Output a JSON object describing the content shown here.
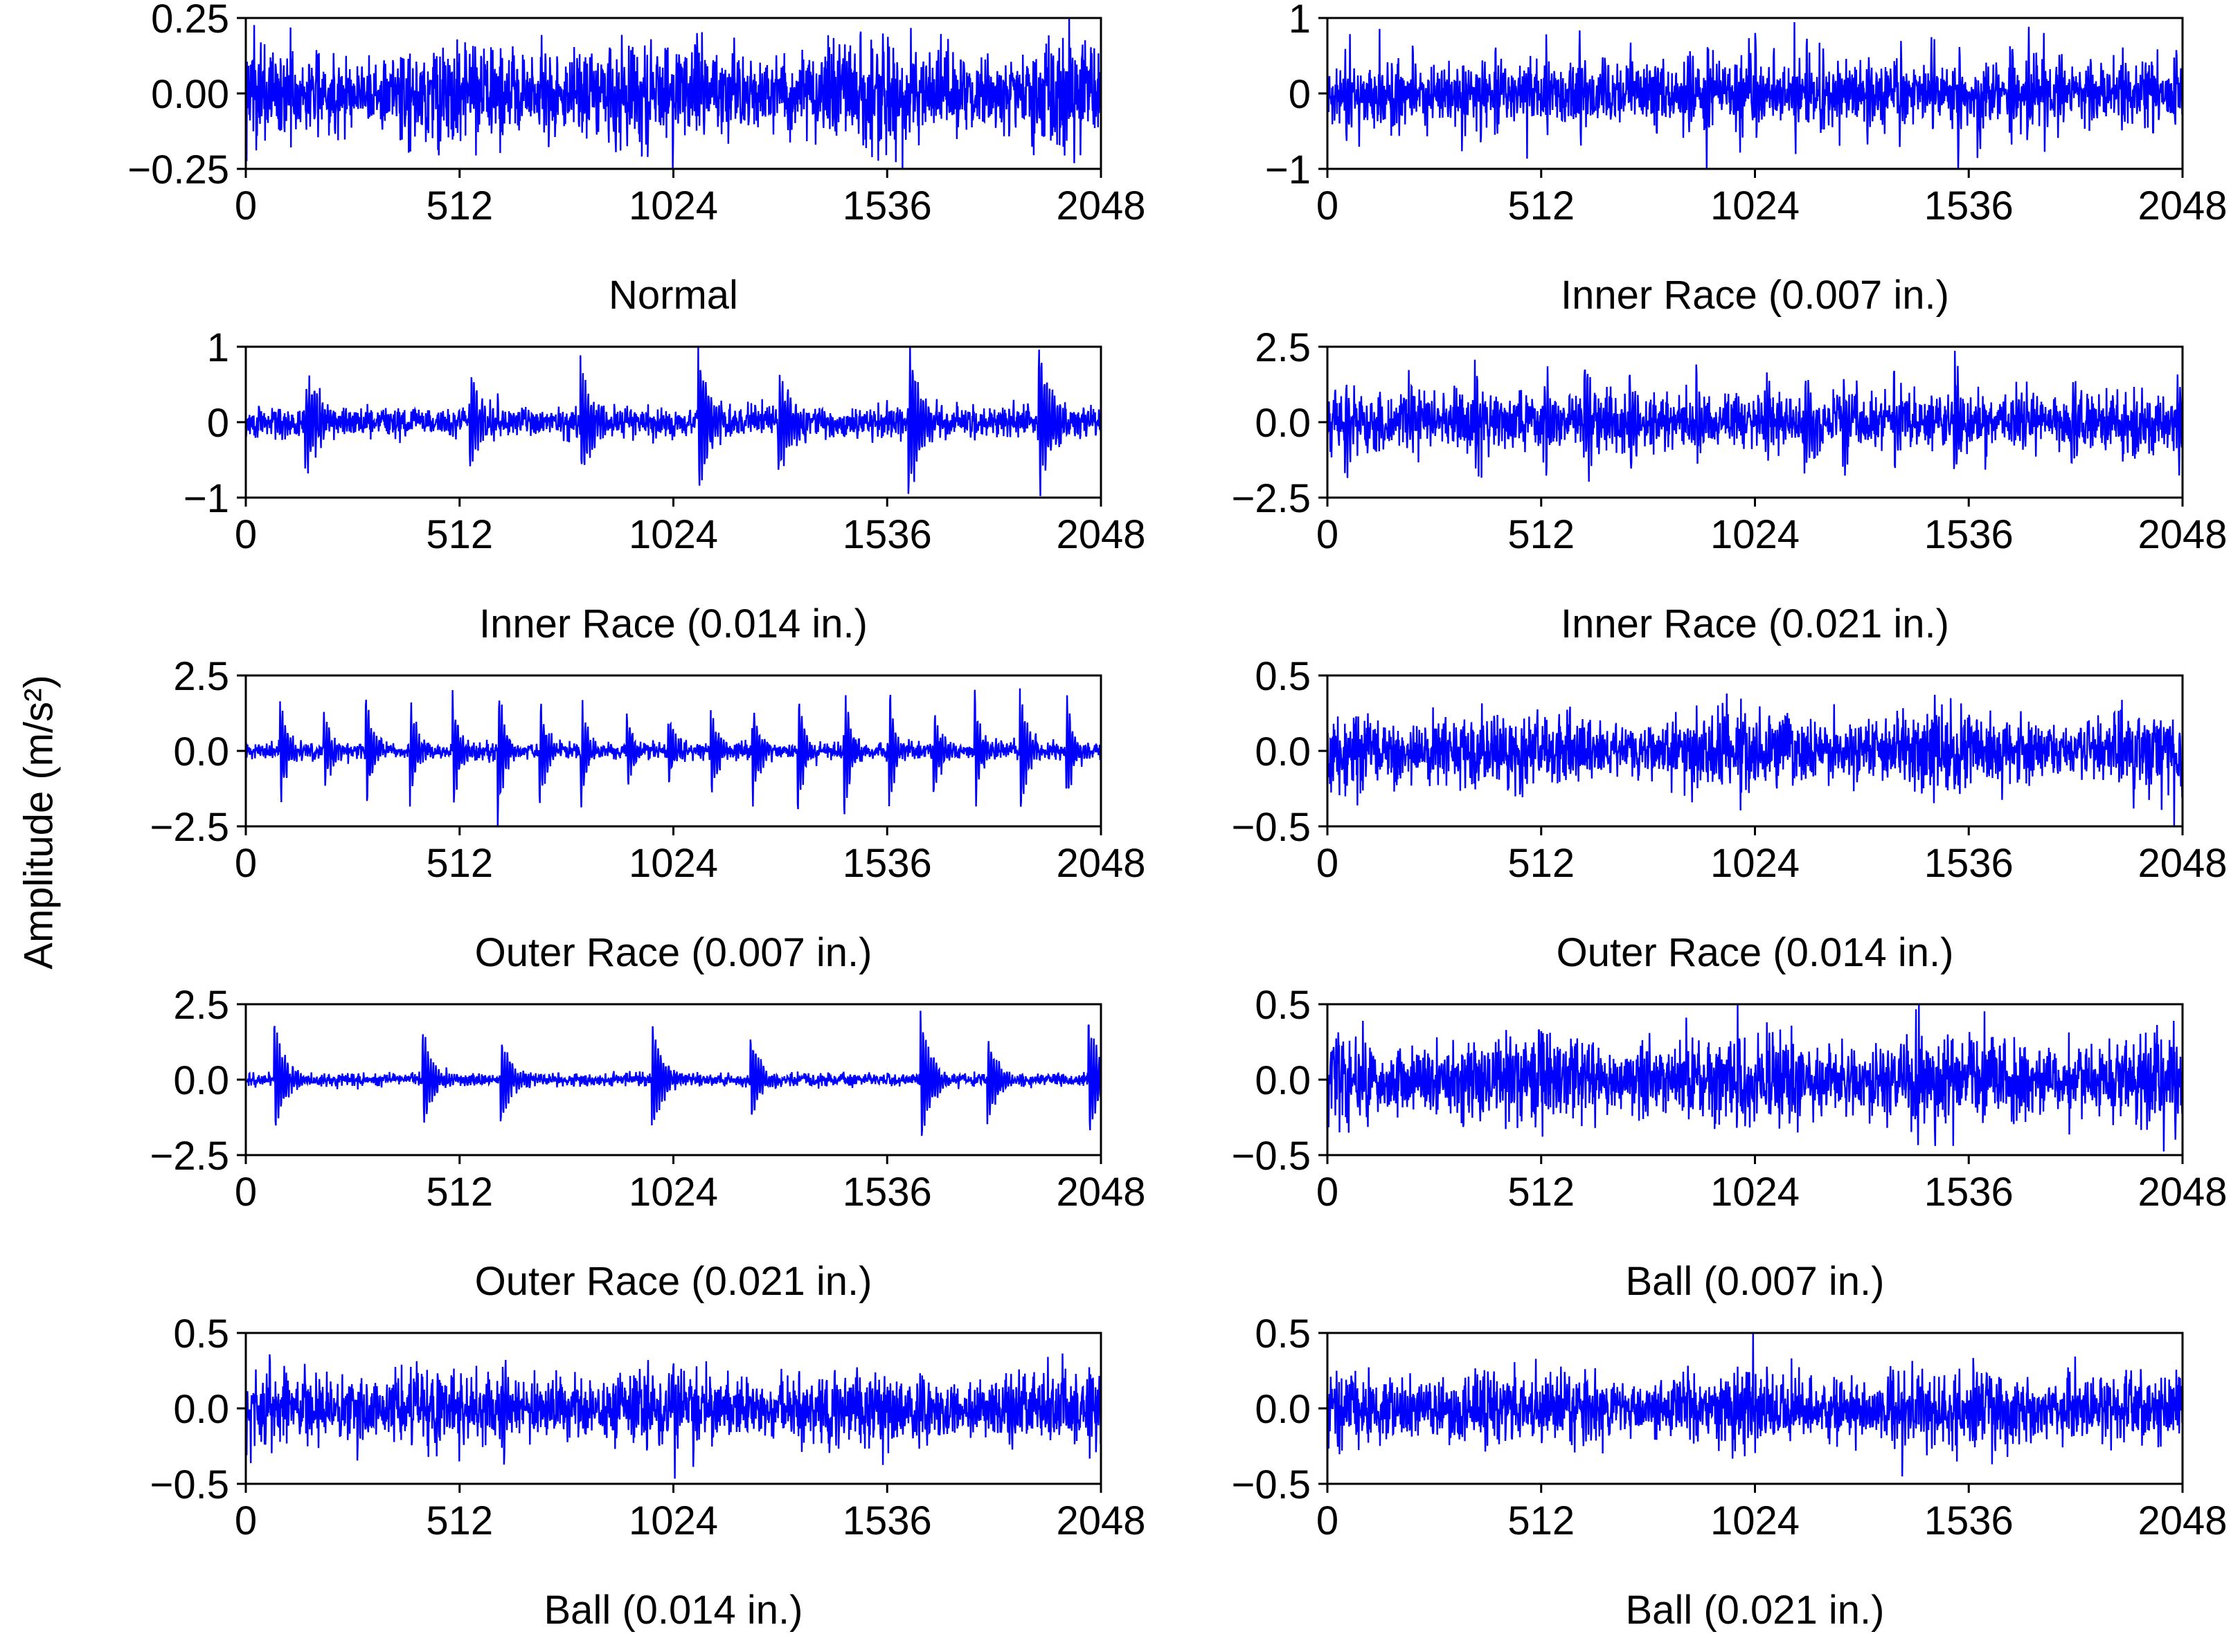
{
  "figure": {
    "background": "#ffffff"
  },
  "chart_data": {
    "type": "line",
    "description": "Vibration acceleration time-series (2048 samples each) for ten bearing health conditions arranged in a 5x2 grid of subplots",
    "ylabel": "Amplitude (m/s²)",
    "line_color": "#0000ff",
    "grid": "off",
    "legend": "none",
    "x": {
      "lim": [
        0,
        2048
      ],
      "ticks": [
        0,
        512,
        1024,
        1536,
        2048
      ]
    },
    "subplots": [
      {
        "title": "Normal",
        "ylim": [
          -0.25,
          0.25
        ],
        "ytick_labels": [
          "0.25",
          "0.00",
          "−0.25"
        ],
        "ytick_values": [
          0.25,
          0,
          -0.25
        ],
        "signal": {
          "noise_amp": 0.075,
          "mod": 0.2
        }
      },
      {
        "title": "Inner Race (0.007 in.)",
        "ylim": [
          -1,
          1
        ],
        "ytick_labels": [
          "1",
          "0",
          "−1"
        ],
        "ytick_values": [
          1,
          0,
          -1
        ],
        "signal": {
          "noise_amp": 0.2,
          "burst_period": 55,
          "burst_amp": 0.7,
          "burst_decay": 10,
          "burst_jitter": 0.5
        }
      },
      {
        "title": "Inner Race (0.014 in.)",
        "ylim": [
          -1,
          1
        ],
        "ytick_labels": [
          "1",
          "0",
          "−1"
        ],
        "ytick_values": [
          1,
          0,
          -1
        ],
        "signal": {
          "noise_amp": 0.1,
          "burst_period": 300,
          "burst_amp": 0.9,
          "burst_decay": 30,
          "burst_jitter": 0.4
        }
      },
      {
        "title": "Inner Race (0.021 in.)",
        "ylim": [
          -2.5,
          2.5
        ],
        "ytick_labels": [
          "2.5",
          "0.0",
          "−2.5"
        ],
        "ytick_values": [
          2.5,
          0,
          -2.5
        ],
        "signal": {
          "noise_amp": 0.45,
          "burst_period": 120,
          "burst_amp": 1.7,
          "burst_decay": 18,
          "burst_jitter": 0.45
        }
      },
      {
        "title": "Outer Race (0.007 in.)",
        "ylim": [
          -2.5,
          2.5
        ],
        "ytick_labels": [
          "2.5",
          "0.0",
          "−2.5"
        ],
        "ytick_values": [
          2.5,
          0,
          -2.5
        ],
        "signal": {
          "noise_amp": 0.14,
          "burst_period": 105,
          "burst_amp": 2.1,
          "burst_decay": 16,
          "burst_jitter": 0.06
        }
      },
      {
        "title": "Outer Race (0.014 in.)",
        "ylim": [
          -0.5,
          0.5
        ],
        "ytick_labels": [
          "0.5",
          "0.0",
          "−0.5"
        ],
        "ytick_values": [
          0.5,
          0,
          -0.5
        ],
        "signal": {
          "noise_amp": 0.11,
          "mod": 0.25,
          "burst_period": 400,
          "burst_amp": 0.1,
          "burst_decay": 40,
          "burst_jitter": 0.4
        }
      },
      {
        "title": "Outer Race (0.021 in.)",
        "ylim": [
          -2.5,
          2.5
        ],
        "ytick_labels": [
          "2.5",
          "0.0",
          "−2.5"
        ],
        "ytick_values": [
          2.5,
          0,
          -2.5
        ],
        "signal": {
          "noise_amp": 0.1,
          "burst_period": 290,
          "burst_amp": 2.1,
          "burst_decay": 25,
          "burst_jitter": 0.45
        }
      },
      {
        "title": "Ball (0.007 in.)",
        "ylim": [
          -0.5,
          0.5
        ],
        "ytick_labels": [
          "0.5",
          "0.0",
          "−0.5"
        ],
        "ytick_values": [
          0.5,
          0,
          -0.5
        ],
        "signal": {
          "noise_amp": 0.13,
          "mod": 0.2,
          "burst_period": 250,
          "burst_amp": 0.15,
          "burst_decay": 40,
          "burst_jitter": 0.5
        }
      },
      {
        "title": "Ball (0.014 in.)",
        "ylim": [
          -0.5,
          0.5
        ],
        "ytick_labels": [
          "0.5",
          "0.0",
          "−0.5"
        ],
        "ytick_values": [
          0.5,
          0,
          -0.5
        ],
        "signal": {
          "noise_amp": 0.11,
          "mod": 0.15,
          "burst_period": 330,
          "burst_amp": 0.3,
          "burst_decay": 20,
          "burst_jitter": 0.5
        }
      },
      {
        "title": "Ball (0.021 in.)",
        "ylim": [
          -0.5,
          0.5
        ],
        "ytick_labels": [
          "0.5",
          "0.0",
          "−0.5"
        ],
        "ytick_values": [
          0.5,
          0,
          -0.5
        ],
        "signal": {
          "noise_amp": 0.11,
          "mod": 0.2,
          "burst_period": 280,
          "burst_amp": 0.2,
          "burst_decay": 30,
          "burst_jitter": 0.5
        }
      }
    ]
  }
}
